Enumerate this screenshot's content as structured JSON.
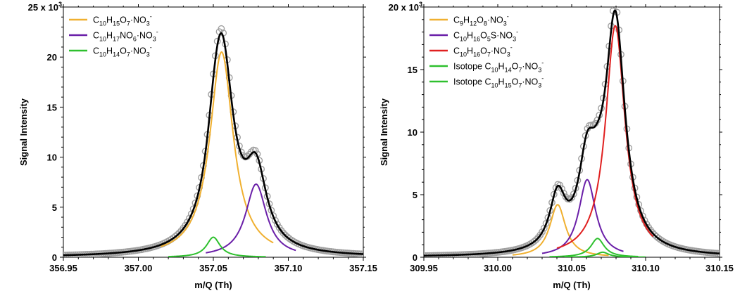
{
  "chart_data": [
    {
      "type": "line",
      "xlabel": "m/Q (Th)",
      "ylabel": "Signal Intensity",
      "y_multiplier_label": "x 10",
      "y_multiplier_exp": "3",
      "xlim": [
        356.95,
        357.15
      ],
      "ylim": [
        0,
        25
      ],
      "xticks": [
        {
          "value": 356.95,
          "label": "356.95"
        },
        {
          "value": 357.0,
          "label": "357.00"
        },
        {
          "value": 357.05,
          "label": "357.05"
        },
        {
          "value": 357.1,
          "label": "357.10"
        },
        {
          "value": 357.15,
          "label": "357.15"
        }
      ],
      "yticks": [
        {
          "value": 0,
          "label": "0"
        },
        {
          "value": 5,
          "label": "5"
        },
        {
          "value": 10,
          "label": "10"
        },
        {
          "value": 15,
          "label": "15"
        },
        {
          "value": 20,
          "label": "20"
        },
        {
          "value": 25,
          "label": "25"
        }
      ],
      "legend_position": "top-left",
      "legend": [
        {
          "color": "#f0b030",
          "label": [
            {
              "t": "C"
            },
            {
              "t": "10",
              "s": "sub"
            },
            {
              "t": "H"
            },
            {
              "t": "15",
              "s": "sub"
            },
            {
              "t": "O"
            },
            {
              "t": "7",
              "s": "sub"
            },
            {
              "t": "·NO"
            },
            {
              "t": "3",
              "s": "sub"
            },
            {
              "t": "-",
              "s": "sup"
            }
          ]
        },
        {
          "color": "#6a1fa8",
          "label": [
            {
              "t": "C"
            },
            {
              "t": "10",
              "s": "sub"
            },
            {
              "t": "H"
            },
            {
              "t": "17",
              "s": "sub"
            },
            {
              "t": "NO"
            },
            {
              "t": "6",
              "s": "sub"
            },
            {
              "t": "·NO"
            },
            {
              "t": "3",
              "s": "sub"
            },
            {
              "t": "-",
              "s": "sup"
            }
          ]
        },
        {
          "color": "#2ec02e",
          "label": [
            {
              "t": "C"
            },
            {
              "t": "10",
              "s": "sub"
            },
            {
              "t": "H"
            },
            {
              "t": "14",
              "s": "sub"
            },
            {
              "t": "O"
            },
            {
              "t": "7",
              "s": "sub"
            },
            {
              "t": "·NO"
            },
            {
              "t": "3",
              "s": "sub"
            },
            {
              "t": "-",
              "s": "sup"
            }
          ]
        }
      ],
      "peaks": [
        {
          "color": "#f0b030",
          "center": 357.0555,
          "height": 20.5,
          "width": 0.0095,
          "range": [
            357.015,
            357.09
          ]
        },
        {
          "color": "#6a1fa8",
          "center": 357.0785,
          "height": 7.3,
          "width": 0.0085,
          "range": [
            357.045,
            357.105
          ]
        },
        {
          "color": "#2ec02e",
          "center": 357.05,
          "height": 2.0,
          "width": 0.0055,
          "range": [
            357.02,
            357.085
          ]
        }
      ],
      "peak_shape": "lorentzian",
      "sum_color": "#000000",
      "data_points_color": "#a0a0a0",
      "data_range": [
        356.95,
        357.15
      ]
    },
    {
      "type": "line",
      "xlabel": "m/Q (Th)",
      "ylabel": "Signal Intensity",
      "y_multiplier_label": "x 10",
      "y_multiplier_exp": "3",
      "xlim": [
        309.95,
        310.15
      ],
      "ylim": [
        0,
        20
      ],
      "xticks": [
        {
          "value": 309.95,
          "label": "309.95"
        },
        {
          "value": 310.0,
          "label": "310.00"
        },
        {
          "value": 310.05,
          "label": "310.05"
        },
        {
          "value": 310.1,
          "label": "310.10"
        },
        {
          "value": 310.15,
          "label": "310.15"
        }
      ],
      "yticks": [
        {
          "value": 0,
          "label": "0"
        },
        {
          "value": 5,
          "label": "5"
        },
        {
          "value": 10,
          "label": "10"
        },
        {
          "value": 15,
          "label": "15"
        },
        {
          "value": 20,
          "label": "20"
        }
      ],
      "legend_position": "top-left",
      "legend": [
        {
          "color": "#f0b030",
          "label": [
            {
              "t": "C"
            },
            {
              "t": "9",
              "s": "sub"
            },
            {
              "t": "H"
            },
            {
              "t": "12",
              "s": "sub"
            },
            {
              "t": "O"
            },
            {
              "t": "8",
              "s": "sub"
            },
            {
              "t": "·NO"
            },
            {
              "t": "3",
              "s": "sub"
            },
            {
              "t": "-",
              "s": "sup"
            }
          ]
        },
        {
          "color": "#6a1fa8",
          "label": [
            {
              "t": "C"
            },
            {
              "t": "10",
              "s": "sub"
            },
            {
              "t": "H"
            },
            {
              "t": "16",
              "s": "sub"
            },
            {
              "t": "O"
            },
            {
              "t": "5",
              "s": "sub"
            },
            {
              "t": "S·NO"
            },
            {
              "t": "3",
              "s": "sub"
            },
            {
              "t": "-",
              "s": "sup"
            }
          ]
        },
        {
          "color": "#e02020",
          "label": [
            {
              "t": "C"
            },
            {
              "t": "10",
              "s": "sub"
            },
            {
              "t": "H"
            },
            {
              "t": "16",
              "s": "sub"
            },
            {
              "t": "O"
            },
            {
              "t": "7",
              "s": "sub"
            },
            {
              "t": "·NO"
            },
            {
              "t": "3",
              "s": "sub"
            },
            {
              "t": "-",
              "s": "sup"
            }
          ]
        },
        {
          "color": "#2ec02e",
          "label": [
            {
              "t": "Isotope C"
            },
            {
              "t": "10",
              "s": "sub"
            },
            {
              "t": "H"
            },
            {
              "t": "14",
              "s": "sub"
            },
            {
              "t": "O"
            },
            {
              "t": "7",
              "s": "sub"
            },
            {
              "t": "·NO"
            },
            {
              "t": "3",
              "s": "sub"
            },
            {
              "t": "-",
              "s": "sup"
            }
          ]
        },
        {
          "color": "#2ec02e",
          "label": [
            {
              "t": "Isotope C"
            },
            {
              "t": "10",
              "s": "sub"
            },
            {
              "t": "H"
            },
            {
              "t": "15",
              "s": "sub"
            },
            {
              "t": "O"
            },
            {
              "t": "7",
              "s": "sub"
            },
            {
              "t": "·NO"
            },
            {
              "t": "3",
              "s": "sub"
            },
            {
              "t": "-",
              "s": "sup"
            }
          ]
        }
      ],
      "peaks": [
        {
          "color": "#f0b030",
          "center": 310.0405,
          "height": 4.2,
          "width": 0.0065,
          "range": [
            310.01,
            310.075
          ]
        },
        {
          "color": "#6a1fa8",
          "center": 310.0605,
          "height": 6.2,
          "width": 0.007,
          "range": [
            310.03,
            310.085
          ]
        },
        {
          "color": "#e02020",
          "center": 310.0795,
          "height": 18.5,
          "width": 0.008,
          "range": [
            310.04,
            310.105
          ]
        },
        {
          "color": "#2ec02e",
          "center": 310.0675,
          "height": 1.5,
          "width": 0.0055,
          "range": [
            310.035,
            310.095
          ]
        },
        {
          "color": "#2ec02e",
          "center": 310.071,
          "height": 0.4,
          "width": 0.005,
          "range": [
            310.045,
            310.1
          ]
        }
      ],
      "peak_shape": "lorentzian",
      "sum_color": "#000000",
      "data_points_color": "#a0a0a0",
      "data_range": [
        309.95,
        310.15
      ]
    }
  ]
}
